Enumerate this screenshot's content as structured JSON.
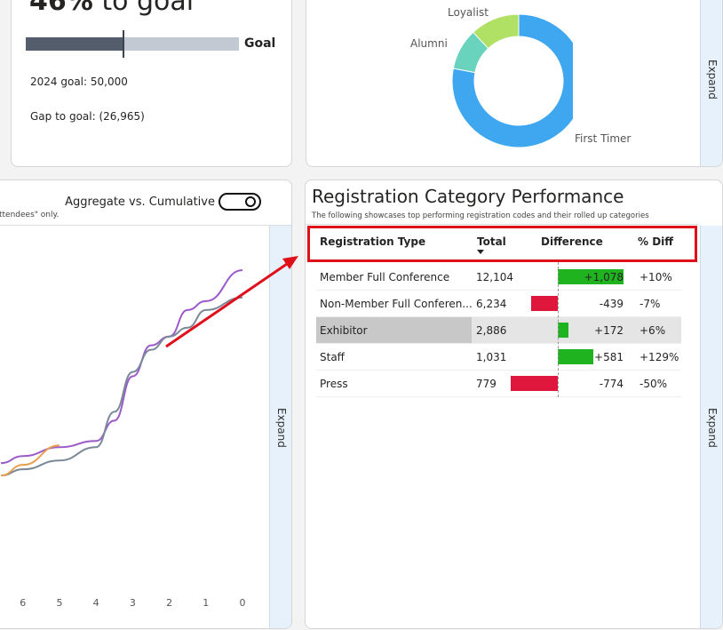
{
  "goal_card": {
    "percent": "46%",
    "suffix": "to goal",
    "progress": 0.46,
    "goal_label": "Goal",
    "goal_text": "2024 goal: 50,000",
    "gap_text": "Gap to goal: (26,965)"
  },
  "donut_card": {
    "expand": "Expand",
    "slices": [
      {
        "label": "First Timer",
        "value": 78,
        "color": "#3fa6f0"
      },
      {
        "label": "Alumni",
        "value": 10,
        "color": "#6ad3bd"
      },
      {
        "label": "Loyalist",
        "value": 12,
        "color": "#b0e164"
      }
    ]
  },
  "trend_card": {
    "toggle_label": "Aggregate vs. Cumulative",
    "note": "ttendees\" only.",
    "expand": "Expand",
    "chart_data": {
      "type": "line",
      "x_ticks": [
        "6",
        "5",
        "4",
        "3",
        "2",
        "1",
        "0"
      ],
      "xlim": [
        6.6,
        0
      ],
      "ylim": [
        0,
        300
      ],
      "series": [
        {
          "name": "purple",
          "color": "#9b59c9",
          "x": [
            6.6,
            6,
            5,
            4,
            3.5,
            3,
            2.5,
            2,
            1.5,
            1,
            0
          ],
          "y": [
            52,
            60,
            70,
            77,
            100,
            150,
            185,
            195,
            225,
            235,
            270
          ]
        },
        {
          "name": "gray",
          "color": "#7a8898",
          "x": [
            6.6,
            6,
            5,
            4,
            3.5,
            3,
            2.5,
            2,
            1.5,
            1,
            0
          ],
          "y": [
            38,
            45,
            55,
            70,
            110,
            155,
            180,
            195,
            205,
            225,
            239
          ]
        },
        {
          "name": "orange",
          "color": "#e8a050",
          "x": [
            6.6,
            6,
            5
          ],
          "y": [
            38,
            50,
            72
          ]
        }
      ]
    }
  },
  "perf_card": {
    "title": "Registration Category Performance",
    "subtitle": "The following showcases top performing registration codes and their rolled up categories",
    "expand": "Expand",
    "headers": [
      "Registration Type",
      "Total",
      "Difference",
      "% Diff"
    ],
    "rows": [
      {
        "type": "Member Full Conference",
        "total": "12,104",
        "diff": "+1,078",
        "diff_value": 1078,
        "pct": "+10%"
      },
      {
        "type": "Non-Member Full Conferen...",
        "total": "6,234",
        "diff": "-439",
        "diff_value": -439,
        "pct": "-7%"
      },
      {
        "type": "Exhibitor",
        "total": "2,886",
        "diff": "+172",
        "diff_value": 172,
        "pct": "+6%"
      },
      {
        "type": "Staff",
        "total": "1,031",
        "diff": "+581",
        "diff_value": 581,
        "pct": "+129%"
      },
      {
        "type": "Press",
        "total": "779",
        "diff": "-774",
        "diff_value": -774,
        "pct": "-50%"
      }
    ]
  }
}
